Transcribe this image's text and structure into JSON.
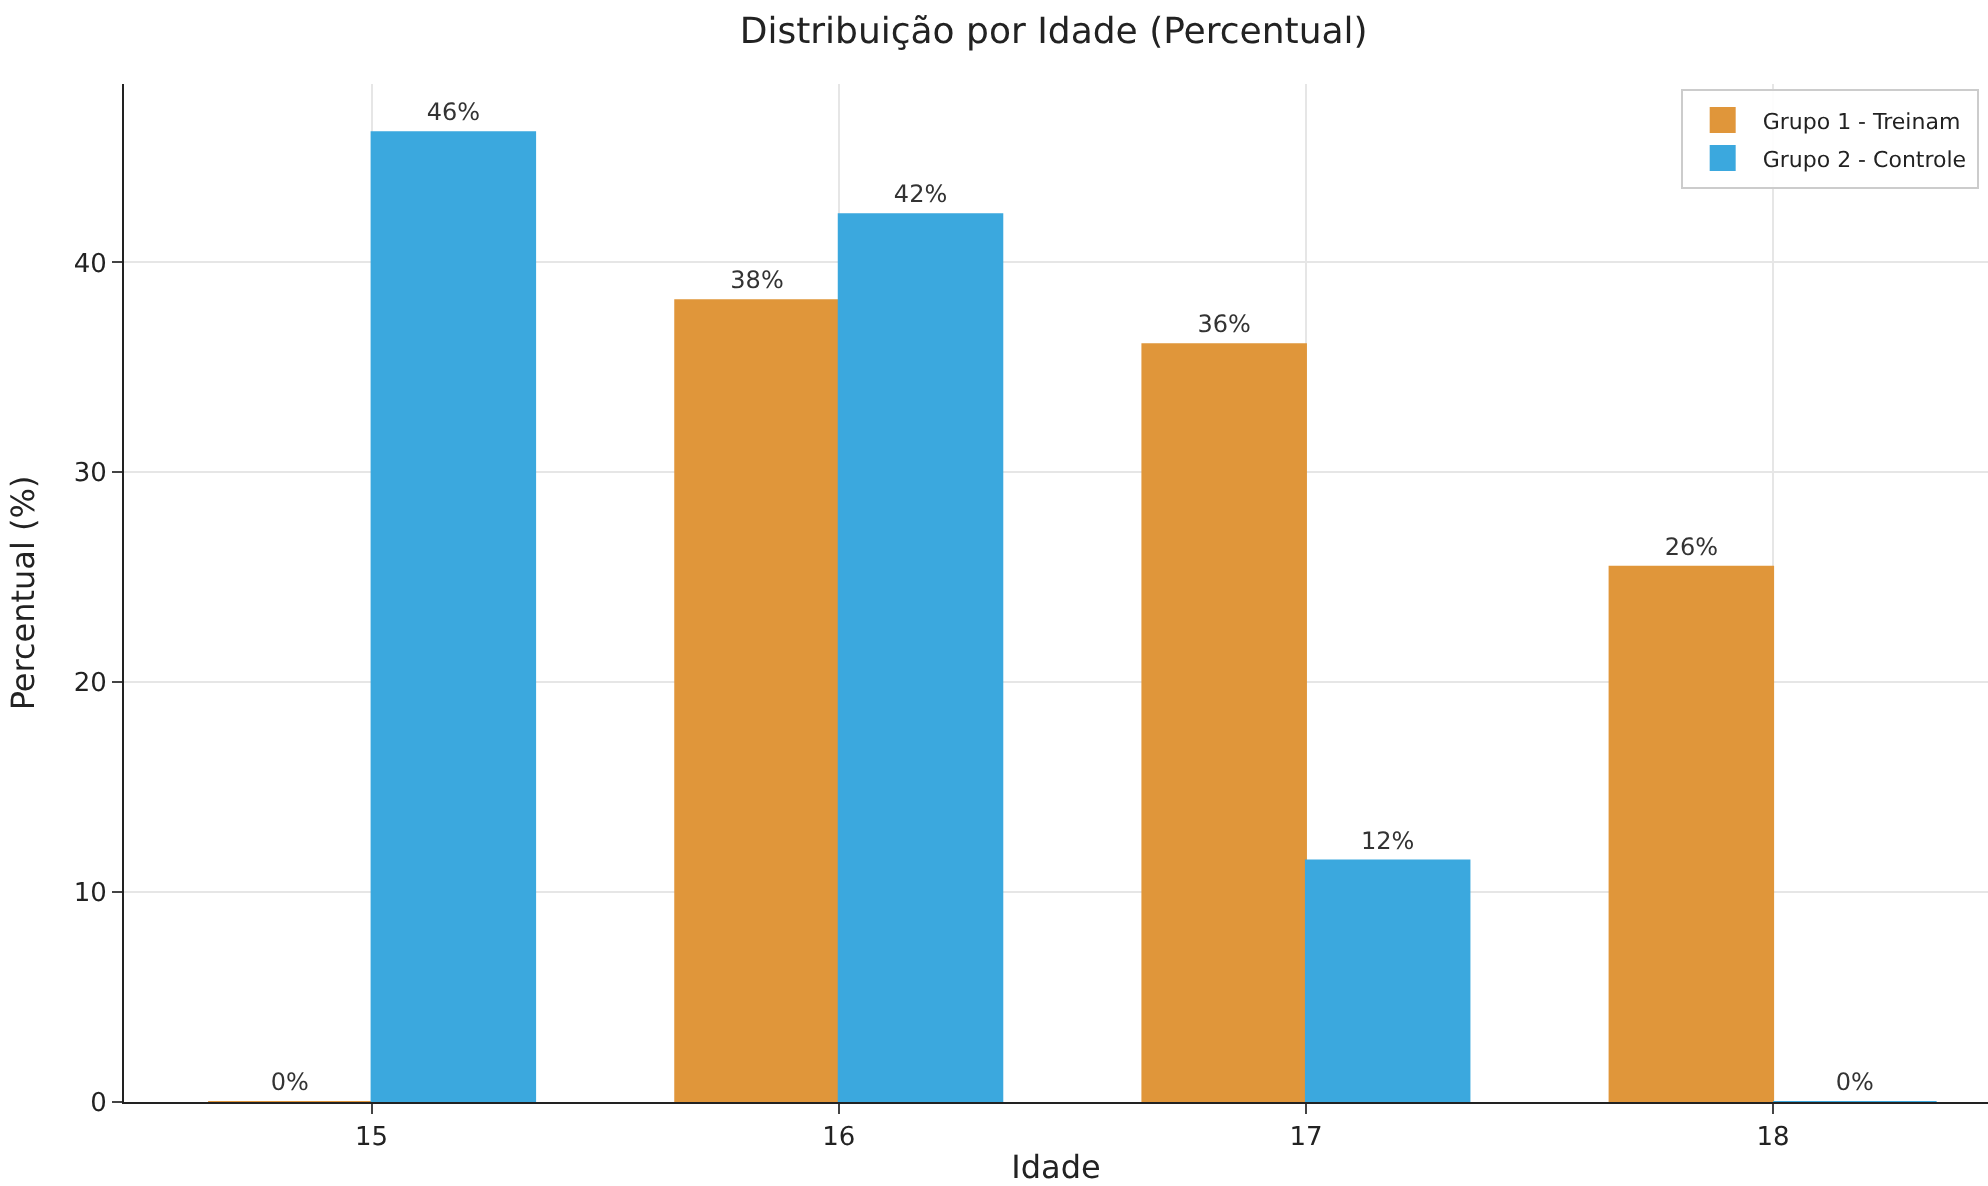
{
  "chart_data": {
    "type": "bar",
    "title": "Distribuição por Idade (Percentual)",
    "xlabel": "Idade",
    "ylabel": "Percentual (%)",
    "categories": [
      "15",
      "16",
      "17",
      "18"
    ],
    "series": [
      {
        "name": "Grupo 1 - Treinam",
        "color": "#e0963a",
        "values": [
          0,
          38.2,
          36.1,
          25.5
        ],
        "value_labels": [
          "0%",
          "38%",
          "36%",
          "26%"
        ]
      },
      {
        "name": "Grupo 2 - Controle",
        "color": "#3ba8de",
        "values": [
          46.2,
          42.3,
          11.5,
          0
        ],
        "value_labels": [
          "46%",
          "42%",
          "12%",
          "0%"
        ]
      }
    ],
    "ylim": [
      0,
      48.5
    ],
    "yticks": [
      0,
      10,
      20,
      30,
      40
    ],
    "grid": true,
    "legend": "top right"
  }
}
